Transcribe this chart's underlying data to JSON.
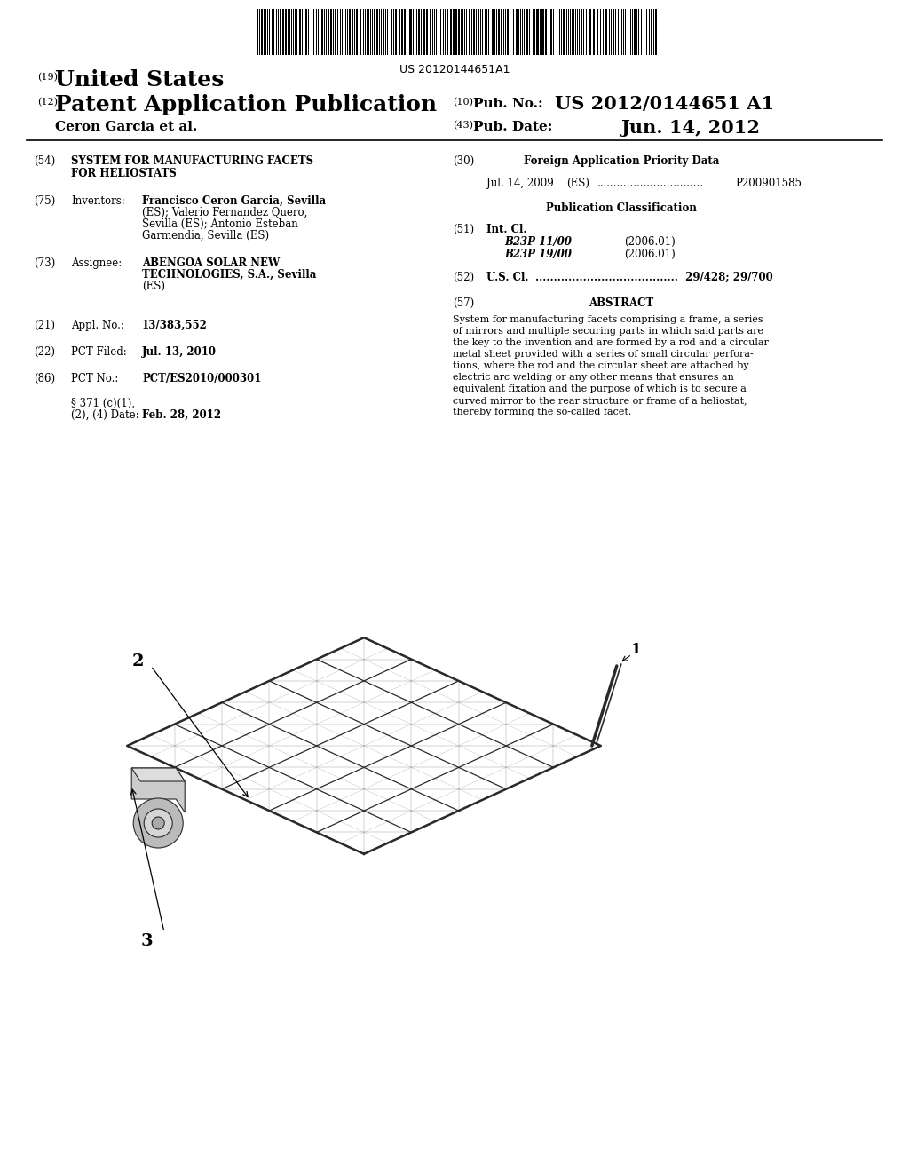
{
  "background_color": "#ffffff",
  "barcode_text": "US 20120144651A1",
  "header": {
    "label19": "(19)",
    "country": "United States",
    "label12": "(12)",
    "pub_type": "Patent Application Publication",
    "inventor": "Ceron Garcia et al.",
    "label10": "(10)",
    "pub_no_label": "Pub. No.:",
    "pub_no": "US 2012/0144651 A1",
    "label43": "(43)",
    "pub_date_label": "Pub. Date:",
    "pub_date": "Jun. 14, 2012"
  },
  "left_col": {
    "field54_label": "(54)",
    "field54_title1": "SYSTEM FOR MANUFACTURING FACETS",
    "field54_title2": "FOR HELIOSTATS",
    "field75_label": "(75)",
    "field75_key": "Inventors:",
    "field75_val1": "Francisco Ceron Garcia, Sevilla",
    "field75_val1b": "(ES); Valerio Fernandez Quero,",
    "field75_val1c": "Sevilla (ES); Antonio Esteban",
    "field75_val1d": "Garmendia, Sevilla (ES)",
    "field73_label": "(73)",
    "field73_key": "Assignee:",
    "field73_val1": "ABENGOA SOLAR NEW",
    "field73_val2": "TECHNOLOGIES, S.A., Sevilla",
    "field73_val3": "(ES)",
    "field21_label": "(21)",
    "field21_key": "Appl. No.:",
    "field21_val": "13/383,552",
    "field22_label": "(22)",
    "field22_key": "PCT Filed:",
    "field22_val": "Jul. 13, 2010",
    "field86_label": "(86)",
    "field86_key": "PCT No.:",
    "field86_val": "PCT/ES2010/000301",
    "field371_key1": "§ 371 (c)(1),",
    "field371_key2": "(2), (4) Date:",
    "field371_val": "Feb. 28, 2012"
  },
  "right_col": {
    "field30_label": "(30)",
    "field30_key": "Foreign Application Priority Data",
    "field30_line": "Jul. 14, 2009    (ES) ................................   P200901585",
    "pub_class_title": "Publication Classification",
    "field51_label": "(51)",
    "field51_key": "Int. Cl.",
    "field51_val1a": "B23P 11/00",
    "field51_val1b": "(2006.01)",
    "field51_val2a": "B23P 19/00",
    "field51_val2b": "(2006.01)",
    "field52_label": "(52)",
    "field52_key": "U.S. Cl.",
    "field52_val": "29/428; 29/700",
    "field57_label": "(57)",
    "field57_key": "ABSTRACT",
    "abstract_lines": [
      "System for manufacturing facets comprising a frame, a series",
      "of mirrors and multiple securing parts in which said parts are",
      "the key to the invention and are formed by a rod and a circular",
      "metal sheet provided with a series of small circular perfora-",
      "tions, where the rod and the circular sheet are attached by",
      "electric arc welding or any other means that ensures an",
      "equivalent fixation and the purpose of which is to secure a",
      "curved mirror to the rear structure or frame of a heliostat,",
      "thereby forming the so-called facet."
    ]
  },
  "diagram": {
    "label1": "1",
    "label2": "2",
    "label3": "3"
  }
}
